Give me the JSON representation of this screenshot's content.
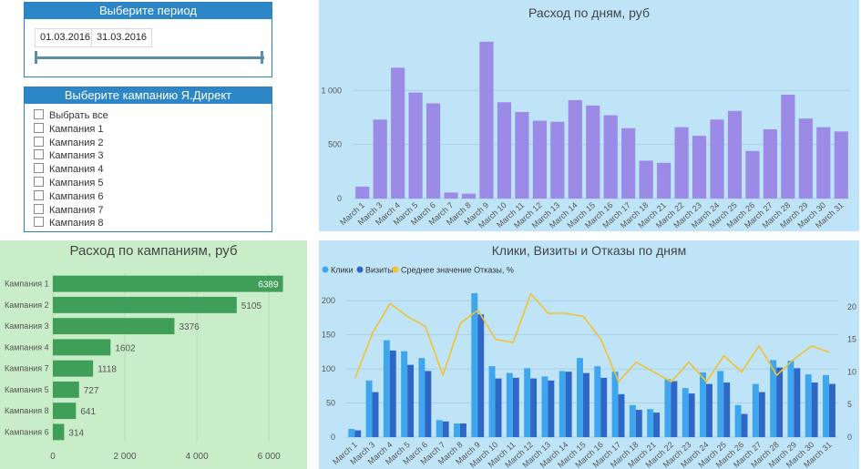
{
  "period_slicer": {
    "title": "Выберите период",
    "start_date": "01.03.2016",
    "end_date": "31.03.2016"
  },
  "campaign_slicer": {
    "title": "Выберите кампанию Я.Директ",
    "items": [
      "Выбрать все",
      "Кампания 1",
      "Кампания 2",
      "Кампания 3",
      "Кампания 4",
      "Кампания 5",
      "Кампания 6",
      "Кампания 7",
      "Кампания 8"
    ]
  },
  "colors": {
    "slicer_header": "#2d86c6",
    "daily_bar": "#9b8be6",
    "daily_bg": "#bfe4f8",
    "campaign_bar": "#3f9e57",
    "campaign_bg": "#c9edc9",
    "clicks": "#3fa6ee",
    "visits": "#2f67c6",
    "bounce": "#f2c12e"
  },
  "daily_chart": {
    "title": "Расход по дням, руб",
    "chart_data": {
      "type": "bar",
      "title": "Расход по дням, руб",
      "categories": [
        "March 1",
        "March 3",
        "March 4",
        "March 5",
        "March 6",
        "March 7",
        "March 8",
        "March 9",
        "March 10",
        "March 11",
        "March 12",
        "March 13",
        "March 14",
        "March 15",
        "March 16",
        "March 17",
        "March 18",
        "March 21",
        "March 22",
        "March 23",
        "March 24",
        "March 25",
        "March 26",
        "March 27",
        "March 28",
        "March 29",
        "March 30",
        "March 31"
      ],
      "values": [
        110,
        730,
        1210,
        980,
        880,
        55,
        45,
        1450,
        890,
        800,
        720,
        710,
        910,
        860,
        770,
        650,
        350,
        330,
        660,
        580,
        730,
        810,
        440,
        640,
        960,
        740,
        660,
        620
      ],
      "yticks": [
        "0",
        "500",
        "1 000"
      ],
      "ylim": [
        0,
        1600
      ]
    }
  },
  "campaign_chart": {
    "title": "Расход по кампаниям, руб",
    "chart_data": {
      "type": "bar",
      "orientation": "horizontal",
      "title": "Расход по кампаниям, руб",
      "categories": [
        "Кампания 1",
        "Кампания 2",
        "Кампания 3",
        "Кампания 4",
        "Кампания 7",
        "Кампания 5",
        "Кампания 8",
        "Кампания 6"
      ],
      "values": [
        6389,
        5105,
        3376,
        1602,
        1118,
        727,
        641,
        314
      ],
      "value_labels": [
        "6389",
        "5105",
        "3376",
        "1602",
        "1118",
        "727",
        "641",
        "314"
      ],
      "xticks": [
        "0",
        "2 000",
        "4 000",
        "6 000"
      ],
      "xlim": [
        0,
        6400
      ]
    }
  },
  "combo_chart": {
    "title": "Клики, Визиты и Отказы по дням",
    "legend": [
      "Клики",
      "Визиты",
      "Среднее значение Отказы, %"
    ],
    "chart_data": {
      "type": "bar",
      "title": "Клики, Визиты и Отказы по дням",
      "categories": [
        "March 1",
        "March 3",
        "March 4",
        "March 5",
        "March 6",
        "March 7",
        "March 8",
        "March 9",
        "March 10",
        "March 11",
        "March 12",
        "March 13",
        "March 14",
        "March 15",
        "March 16",
        "March 17",
        "March 18",
        "March 21",
        "March 22",
        "March 23",
        "March 24",
        "March 25",
        "March 26",
        "March 27",
        "March 28",
        "March 29",
        "March 30",
        "March 31"
      ],
      "series": [
        {
          "name": "Клики",
          "values": [
            12,
            83,
            142,
            126,
            116,
            25,
            20,
            211,
            104,
            94,
            101,
            89,
            97,
            116,
            104,
            96,
            47,
            41,
            85,
            72,
            95,
            97,
            47,
            78,
            113,
            112,
            92,
            91
          ]
        },
        {
          "name": "Визиты",
          "values": [
            10,
            66,
            127,
            106,
            97,
            23,
            20,
            180,
            86,
            87,
            86,
            83,
            96,
            94,
            87,
            63,
            40,
            36,
            82,
            64,
            78,
            80,
            34,
            66,
            102,
            101,
            80,
            78
          ]
        },
        {
          "name": "Среднее значение Отказы, %",
          "values": [
            9,
            16,
            20.5,
            18.5,
            17,
            9.5,
            17.5,
            19.5,
            15,
            14.5,
            22,
            19,
            19,
            18.5,
            15,
            8.5,
            11.5,
            10,
            8.5,
            11.5,
            8.5,
            12.5,
            10,
            14,
            9.5,
            12,
            14,
            13
          ]
        }
      ],
      "yticks_left": [
        "0",
        "50",
        "100",
        "150",
        "200"
      ],
      "yticks_right": [
        "0",
        "5",
        "10",
        "15",
        "20"
      ],
      "ylim_left": [
        0,
        215
      ],
      "ylim_right": [
        0,
        22.5
      ]
    }
  }
}
